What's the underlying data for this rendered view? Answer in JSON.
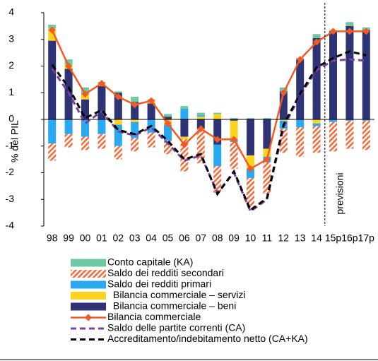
{
  "chart_data": {
    "type": "bar",
    "y_label": "% del PIL",
    "annotation": "previsioni",
    "categories": [
      "98",
      "99",
      "00",
      "01",
      "02",
      "03",
      "04",
      "05",
      "06",
      "07",
      "08",
      "09",
      "10",
      "11",
      "12",
      "13",
      "14",
      "15p",
      "16p",
      "17p"
    ],
    "ylim": [
      -4,
      4
    ],
    "yticks": [
      -4,
      -3,
      -2,
      -1,
      0,
      1,
      2,
      3,
      4
    ],
    "series": [
      {
        "name": "Conto capitale (KA)",
        "kind": "bar",
        "color": "#6dc9a3",
        "values": [
          0.15,
          0.2,
          0.25,
          0.05,
          0.05,
          0.2,
          0.05,
          0.1,
          0.1,
          0.1,
          0.05,
          0.05,
          0.05,
          0.05,
          0.15,
          0.05,
          0.15,
          0.05,
          0.15,
          0.1
        ]
      },
      {
        "name": "Saldo dei redditi secondari",
        "kind": "bar",
        "hatch": true,
        "color": "#f26d3d",
        "values": [
          -0.65,
          -0.5,
          -0.5,
          -0.55,
          -0.5,
          -0.5,
          -0.55,
          -0.5,
          -1.2,
          -1.3,
          -1.0,
          -1.0,
          -1.1,
          -1.2,
          -0.9,
          -1.1,
          -1.0,
          -1.1,
          -1.05,
          -1.1
        ]
      },
      {
        "name": "Saldo dei redditi primari",
        "kind": "bar",
        "color": "#2aa8f2",
        "values": [
          -0.9,
          -0.55,
          -0.65,
          -0.55,
          -0.8,
          -0.6,
          -0.5,
          -0.6,
          0.4,
          0.05,
          -0.8,
          -0.1,
          -0.35,
          -0.2,
          -0.3,
          -0.3,
          -0.1,
          -0.1,
          -0.05,
          -0.05
        ]
      },
      {
        "name": "Bilancia commerciale – servizi",
        "kind": "bar",
        "color": "#ffd21f",
        "values": [
          0.45,
          0.15,
          0.2,
          0.1,
          -0.2,
          -0.1,
          0.1,
          -0.2,
          -0.1,
          0.1,
          0.2,
          -0.7,
          -0.5,
          -0.3,
          -0.05,
          0.0,
          -0.15,
          0.0,
          0.0,
          0.0
        ]
      },
      {
        "name": "Bilancia commerciale – beni",
        "kind": "bar",
        "color": "#2e3376",
        "values": [
          2.95,
          1.9,
          0.75,
          1.25,
          1.0,
          0.65,
          0.6,
          0.1,
          -0.65,
          -0.35,
          -0.95,
          -0.05,
          -1.35,
          -1.1,
          1.05,
          2.25,
          3.05,
          3.3,
          3.5,
          3.35
        ]
      },
      {
        "name": "Bilancia commerciale",
        "kind": "line",
        "marker": "diamond",
        "color": "#f15a22",
        "values": [
          3.35,
          2.0,
          0.95,
          1.35,
          0.85,
          0.55,
          0.7,
          -0.15,
          -0.95,
          -0.35,
          -0.75,
          -0.75,
          -1.85,
          -1.5,
          1.0,
          2.25,
          2.9,
          3.3,
          3.3,
          3.3
        ]
      },
      {
        "name": "Saldo delle partite correnti (CA)",
        "kind": "line",
        "dash": true,
        "color": "#7b3fa3",
        "values": [
          1.9,
          1.0,
          -0.15,
          0.3,
          -0.45,
          -0.6,
          -0.3,
          -0.9,
          -1.55,
          -1.35,
          -2.75,
          -2.0,
          -3.45,
          -3.0,
          -0.3,
          0.9,
          1.85,
          2.2,
          2.25,
          2.2
        ]
      },
      {
        "name": "Accreditamento/indebitamento netto (CA+KA)",
        "kind": "line",
        "dash": true,
        "color": "#000000",
        "values": [
          2.05,
          1.2,
          0.05,
          0.35,
          -0.4,
          -0.55,
          -0.25,
          -0.8,
          -1.5,
          -1.3,
          -2.8,
          -1.95,
          -3.4,
          -2.95,
          -0.2,
          0.95,
          1.95,
          2.3,
          2.55,
          2.4
        ]
      }
    ]
  }
}
